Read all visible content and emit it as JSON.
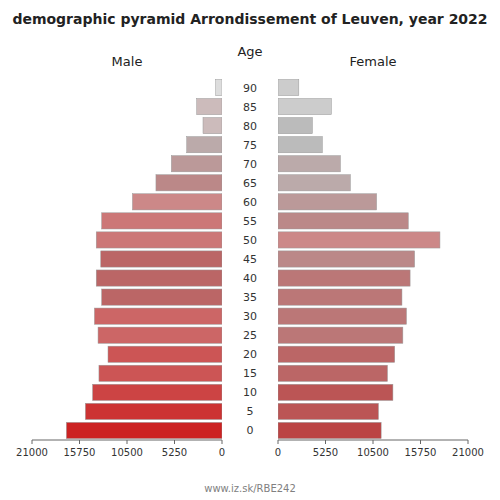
{
  "chart_data": {
    "type": "bar",
    "orientation": "horizontal",
    "title": "demographic pyramid Arrondissement of Leuven, year 2022",
    "ylabel": "Age",
    "categories": [
      "0",
      "5",
      "10",
      "15",
      "20",
      "25",
      "30",
      "35",
      "40",
      "45",
      "50",
      "55",
      "60",
      "65",
      "70",
      "75",
      "80",
      "85",
      "90"
    ],
    "series": [
      {
        "name": "Male",
        "values": [
          17200,
          15100,
          14300,
          13600,
          12600,
          13700,
          14100,
          13300,
          13900,
          13400,
          13900,
          13300,
          9900,
          7300,
          5600,
          3900,
          2100,
          2800,
          700
        ],
        "colors": [
          "#cc2222",
          "#cc3333",
          "#cc4444",
          "#cc5555",
          "#cc5555",
          "#cc6666",
          "#cc6666",
          "#bb6666",
          "#bb6666",
          "#bb6666",
          "#cc7777",
          "#cc7777",
          "#cc8888",
          "#bb8888",
          "#bb9999",
          "#bbaaaa",
          "#ccbbbb",
          "#ccbbbb",
          "#dddddd"
        ]
      },
      {
        "name": "Female",
        "values": [
          11400,
          11100,
          12700,
          12100,
          12900,
          13800,
          14200,
          13700,
          14600,
          15100,
          17900,
          14400,
          10900,
          8000,
          6900,
          4900,
          3800,
          5900,
          2300
        ],
        "colors": [
          "#bb4444",
          "#bb5555",
          "#bb5555",
          "#bb6666",
          "#bb6666",
          "#bb7777",
          "#bb7777",
          "#bb7777",
          "#bb7777",
          "#bb8888",
          "#cc8888",
          "#bb8888",
          "#bb9999",
          "#bbaaaa",
          "#bbaaaa",
          "#bbbbbb",
          "#bbbbbb",
          "#cccccc",
          "#cccccc"
        ]
      }
    ],
    "xlim": [
      0,
      21000
    ],
    "xticks": [
      0,
      5250,
      10500,
      15750,
      21000
    ],
    "grid": false,
    "annotations": [
      "www.iz.sk/RBE242"
    ]
  }
}
